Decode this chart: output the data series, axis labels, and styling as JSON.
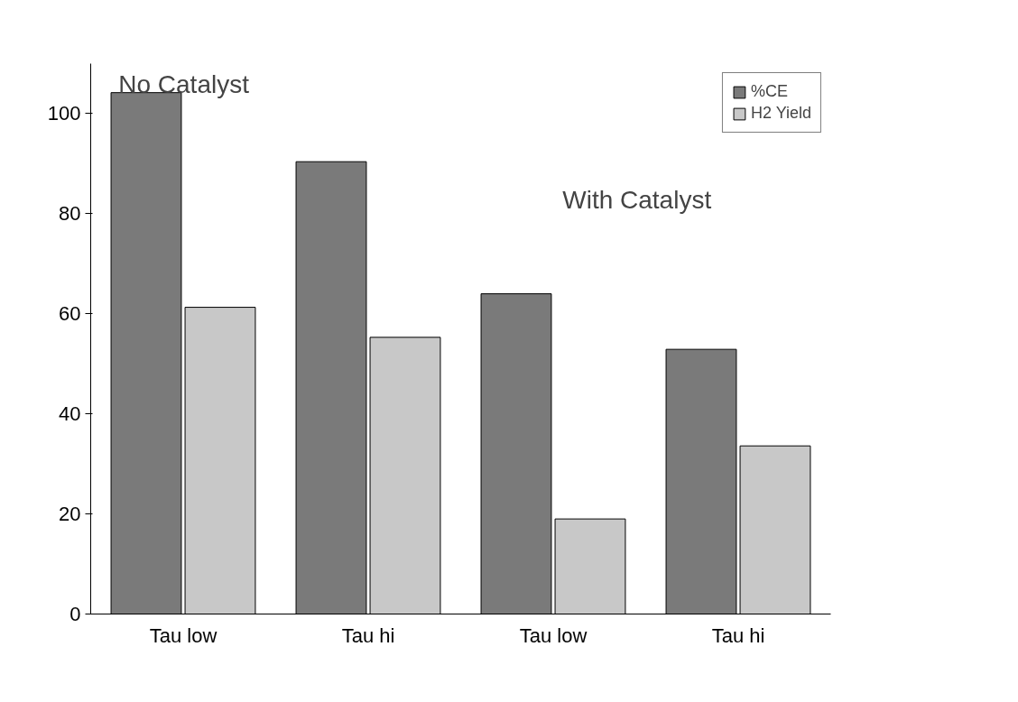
{
  "chart_data": {
    "type": "bar",
    "categories": [
      "Tau low",
      "Tau hi",
      "Tau low",
      "Tau hi"
    ],
    "series": [
      {
        "name": "%CE",
        "color": "#7a7a7a",
        "values": [
          104.2,
          90.4,
          64.0,
          52.9
        ]
      },
      {
        "name": "H2 Yield",
        "color": "#c8c8c8",
        "values": [
          61.3,
          55.3,
          19.0,
          33.6
        ]
      }
    ],
    "ylim": [
      0,
      110
    ],
    "yticks": [
      0,
      20,
      40,
      60,
      80,
      100
    ],
    "grid": false,
    "legend": "top right",
    "annotations": [
      "No Catalyst",
      "With Catalyst"
    ]
  }
}
